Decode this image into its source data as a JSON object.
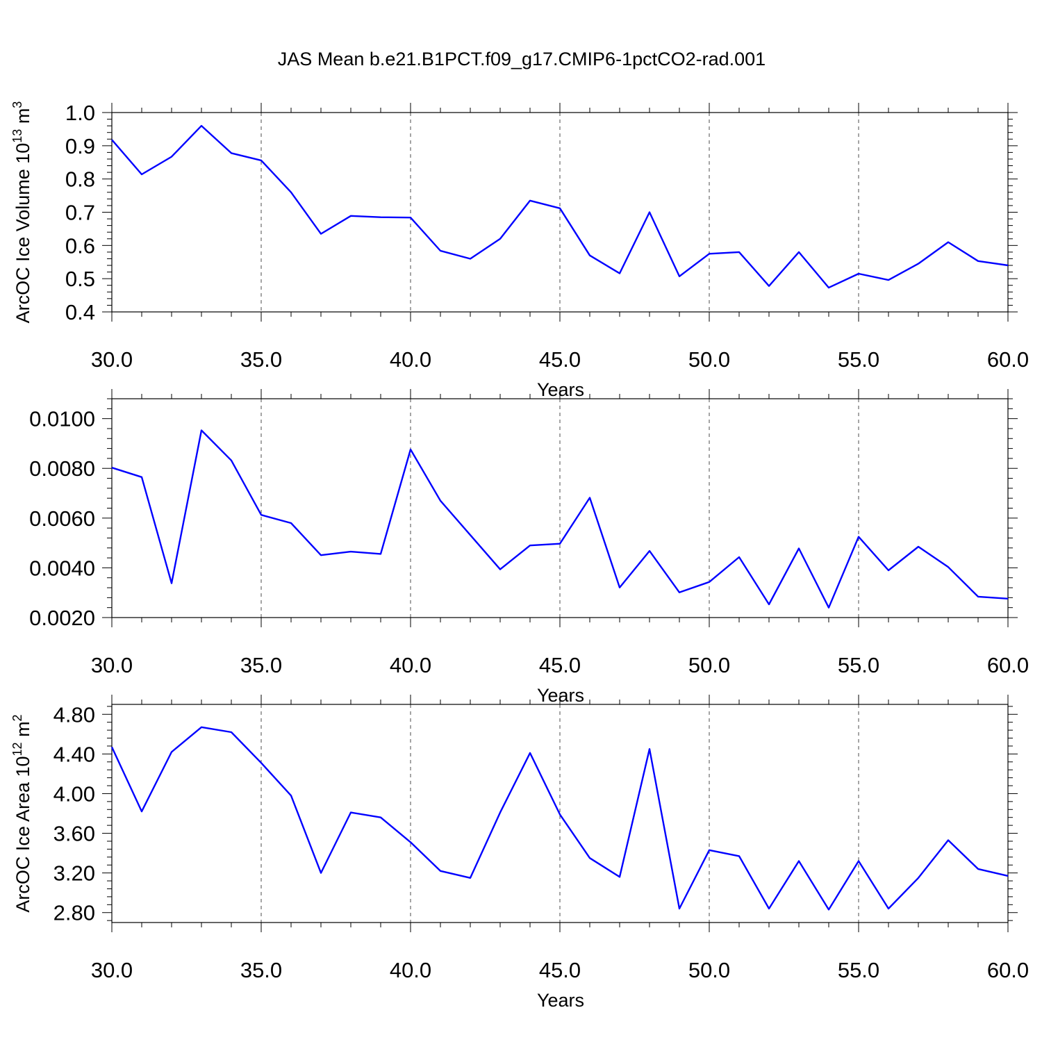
{
  "figure": {
    "title": "JAS Mean b.e21.B1PCT.f09_g17.CMIP6-1pctCO2-rad.001",
    "line_color": "#0000ff"
  },
  "chart_data": [
    {
      "type": "line",
      "xlabel": "Years",
      "ylabel": "ArcOC Ice Volume 10",
      "ylabel_sup1": "13",
      "ylabel_mid": " m",
      "ylabel_sup2": "3",
      "xlim": [
        30,
        60
      ],
      "ylim": [
        0.4,
        1.0
      ],
      "x_ticks": [
        30,
        35,
        40,
        45,
        50,
        55,
        60
      ],
      "x_tick_labels": [
        "30.0",
        "35.0",
        "40.0",
        "45.0",
        "50.0",
        "55.0",
        "60.0"
      ],
      "y_ticks": [
        0.4,
        0.5,
        0.6,
        0.7,
        0.8,
        0.9,
        1.0
      ],
      "y_tick_labels": [
        "0.4",
        "0.5",
        "0.6",
        "0.7",
        "0.8",
        "0.9",
        "1.0"
      ],
      "y_minor_step": 0.02,
      "grid": "vertical dashed",
      "x": [
        30,
        31,
        32,
        33,
        34,
        35,
        36,
        37,
        38,
        39,
        40,
        41,
        42,
        43,
        44,
        45,
        46,
        47,
        48,
        49,
        50,
        51,
        52,
        53,
        54,
        55,
        56,
        57,
        58,
        59,
        60
      ],
      "values": [
        0.918,
        0.814,
        0.867,
        0.96,
        0.878,
        0.856,
        0.76,
        0.635,
        0.689,
        0.685,
        0.684,
        0.584,
        0.56,
        0.62,
        0.735,
        0.712,
        0.57,
        0.516,
        0.7,
        0.507,
        0.575,
        0.58,
        0.478,
        0.58,
        0.473,
        0.515,
        0.496,
        0.545,
        0.61,
        0.553,
        0.54
      ]
    },
    {
      "type": "line",
      "xlabel": "Years",
      "ylabel": "",
      "xlim": [
        30,
        60
      ],
      "ylim": [
        0.002,
        0.0108
      ],
      "x_ticks": [
        30,
        35,
        40,
        45,
        50,
        55,
        60
      ],
      "x_tick_labels": [
        "30.0",
        "35.0",
        "40.0",
        "45.0",
        "50.0",
        "55.0",
        "60.0"
      ],
      "y_ticks": [
        0.002,
        0.004,
        0.006,
        0.008,
        0.01
      ],
      "y_tick_labels": [
        "0.0020",
        "0.0040",
        "0.0060",
        "0.0080",
        "0.0100"
      ],
      "y_minor_step": 0.0004,
      "grid": "vertical dashed",
      "x": [
        30,
        31,
        32,
        33,
        34,
        35,
        36,
        37,
        38,
        39,
        40,
        41,
        42,
        43,
        44,
        45,
        46,
        47,
        48,
        49,
        50,
        51,
        52,
        53,
        54,
        55,
        56,
        57,
        58,
        59,
        60
      ],
      "values": [
        0.00803,
        0.00765,
        0.00338,
        0.00953,
        0.00832,
        0.00613,
        0.0058,
        0.00451,
        0.00465,
        0.00456,
        0.00876,
        0.0067,
        0.00532,
        0.00394,
        0.0049,
        0.00497,
        0.00682,
        0.00321,
        0.00468,
        0.00301,
        0.00343,
        0.00443,
        0.00253,
        0.00478,
        0.0024,
        0.00525,
        0.0039,
        0.00485,
        0.00403,
        0.00284,
        0.00276
      ]
    },
    {
      "type": "line",
      "xlabel": "Years",
      "ylabel": "ArcOC Ice Area 10",
      "ylabel_sup1": "12",
      "ylabel_mid": " m",
      "ylabel_sup2": "2",
      "xlim": [
        30,
        60
      ],
      "ylim": [
        2.7,
        4.9
      ],
      "x_ticks": [
        30,
        35,
        40,
        45,
        50,
        55,
        60
      ],
      "x_tick_labels": [
        "30.0",
        "35.0",
        "40.0",
        "45.0",
        "50.0",
        "55.0",
        "60.0"
      ],
      "y_ticks": [
        2.8,
        3.2,
        3.6,
        4.0,
        4.4,
        4.8
      ],
      "y_tick_labels": [
        "2.80",
        "3.20",
        "3.60",
        "4.00",
        "4.40",
        "4.80"
      ],
      "y_minor_step": 0.08,
      "grid": "vertical dashed",
      "x": [
        30,
        31,
        32,
        33,
        34,
        35,
        36,
        37,
        38,
        39,
        40,
        41,
        42,
        43,
        44,
        45,
        46,
        47,
        48,
        49,
        50,
        51,
        52,
        53,
        54,
        55,
        56,
        57,
        58,
        59,
        60
      ],
      "values": [
        4.47,
        3.82,
        4.42,
        4.67,
        4.62,
        4.31,
        3.98,
        3.2,
        3.81,
        3.76,
        3.51,
        3.22,
        3.15,
        3.81,
        4.41,
        3.79,
        3.35,
        3.16,
        4.45,
        2.84,
        3.43,
        3.37,
        2.84,
        3.32,
        2.83,
        3.32,
        2.84,
        3.15,
        3.53,
        3.24,
        3.17
      ]
    }
  ]
}
